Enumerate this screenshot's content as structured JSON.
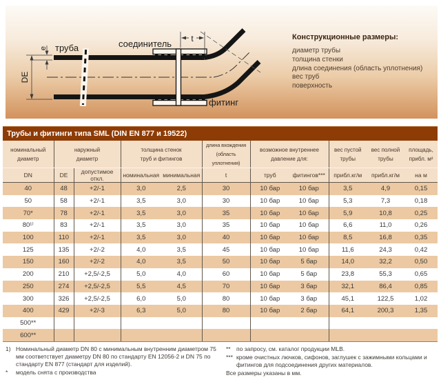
{
  "diagram": {
    "labels": {
      "e": "e",
      "de": "DE",
      "pipe": "труба",
      "coupling": "соединитель",
      "t": "t",
      "fitting": "фитинг"
    },
    "legend": {
      "title": "Конструкционные размеры:",
      "items": [
        "диаметр трубы",
        "толщина стенки",
        "длина соединения (область уплотнения)",
        "вес труб",
        "поверхность"
      ]
    }
  },
  "table": {
    "title": "Трубы и фитинги типа SML (DIN EN 877 и 19522)",
    "column_groups": [
      {
        "line1": "номинальный",
        "line2": "диаметр"
      },
      {
        "line1": "наружный",
        "line2": "диаметр"
      },
      {
        "line1": "толщина стенок",
        "line2": "труб и фитингов"
      },
      {
        "line1": "длина вхождения",
        "line2": "(область уплотнения)"
      },
      {
        "line1": "возможное внутреннее",
        "line2": "давление для:"
      },
      {
        "line1": "вес пустой",
        "line2": "трубы"
      },
      {
        "line1": "вес полной",
        "line2": "трубы"
      },
      {
        "line1": "площадь,",
        "line2": "прибл. м²"
      }
    ],
    "subheaders": [
      "DN",
      "DE",
      "допустимое откл.",
      "номинальная",
      "минимальная",
      "t",
      "труб",
      "фитингов***",
      "прибл.кг/м",
      "прибл.кг/м",
      "на м"
    ],
    "rows": [
      [
        "40",
        "48",
        "+2/-1",
        "3,0",
        "2,5",
        "30",
        "10 бар",
        "10 бар",
        "3,5",
        "4,9",
        "0,15"
      ],
      [
        "50",
        "58",
        "+2/-1",
        "3,5",
        "3,0",
        "30",
        "10 бар",
        "10 бар",
        "5,3",
        "7,3",
        "0,18"
      ],
      [
        "70*",
        "78",
        "+2/-1",
        "3,5",
        "3,0",
        "35",
        "10 бар",
        "10 бар",
        "5,9",
        "10,8",
        "0,25"
      ],
      [
        "80¹⁾",
        "83",
        "+2/-1",
        "3,5",
        "3,0",
        "35",
        "10 бар",
        "10 бар",
        "6,6",
        "11,0",
        "0,26"
      ],
      [
        "100",
        "110",
        "+2/-1",
        "3,5",
        "3,0",
        "40",
        "10 бар",
        "10 бар",
        "8,5",
        "16,8",
        "0,35"
      ],
      [
        "125",
        "135",
        "+2/-2",
        "4,0",
        "3,5",
        "45",
        "10 бар",
        "10 бар",
        "11,6",
        "24,3",
        "0,42"
      ],
      [
        "150",
        "160",
        "+2/-2",
        "4,0",
        "3,5",
        "50",
        "10 бар",
        "5 бар",
        "14,0",
        "32,2",
        "0,50"
      ],
      [
        "200",
        "210",
        "+2,5/-2,5",
        "5,0",
        "4,0",
        "60",
        "10 бар",
        "5 бар",
        "23,8",
        "55,3",
        "0,65"
      ],
      [
        "250",
        "274",
        "+2,5/-2,5",
        "5,5",
        "4,5",
        "70",
        "10 бар",
        "3 бар",
        "32,1",
        "86,4",
        "0,85"
      ],
      [
        "300",
        "326",
        "+2,5/-2,5",
        "6,0",
        "5,0",
        "80",
        "10 бар",
        "3 бар",
        "45,1",
        "122,5",
        "1,02"
      ],
      [
        "400",
        "429",
        "+2/-3",
        "6,3",
        "5,0",
        "80",
        "10 бар",
        "2 бар",
        "64,1",
        "200,3",
        "1,35"
      ],
      [
        "500**",
        "",
        "",
        "",
        "",
        "",
        "",
        "",
        "",
        "",
        ""
      ],
      [
        "600**",
        "",
        "",
        "",
        "",
        "",
        "",
        "",
        "",
        "",
        ""
      ]
    ]
  },
  "footnotes": {
    "left": [
      {
        "marker": "1)",
        "text": "Номинальный диаметр DN 80 с минимальным внутренним диаметром 75 мм соответствует диаметру DN 80 по стандарту EN 12056-2 и DN 75 по стандарту EN 877 (стандарт для изделий)."
      },
      {
        "marker": "*",
        "text": "модель снята с производства"
      }
    ],
    "right": [
      {
        "marker": "**",
        "text": "по запросу, см. каталог продукции MLB."
      },
      {
        "marker": "***",
        "text": "кроме очистных лючков, сифонов, заглушек с зажимными кольцами и фитингов для подсоединения других материалов."
      }
    ],
    "note": "Все размеры указаны в мм."
  },
  "colors": {
    "title_bar": "#8e3c06",
    "header_bg": "#f4dfc9",
    "row_tan": "#ecc9a2",
    "row_white": "#ffffff",
    "gradient_top": "#fdfaf6",
    "gradient_bottom": "#d2925e"
  }
}
